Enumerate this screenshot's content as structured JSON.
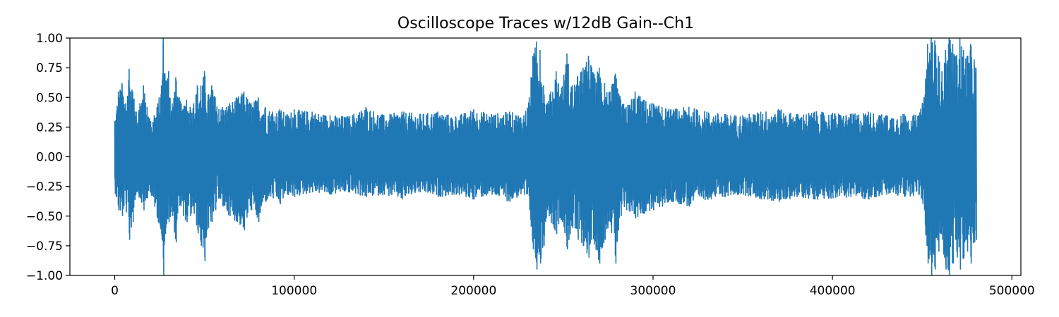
{
  "chart_data": {
    "type": "line",
    "title": "Oscilloscope Traces w/12dB Gain--Ch1",
    "xlabel": "",
    "ylabel": "",
    "xlim": [
      -25000,
      505000
    ],
    "ylim": [
      -1.0,
      1.0
    ],
    "x_ticks": [
      0,
      100000,
      200000,
      300000,
      400000,
      500000
    ],
    "x_tick_labels": [
      "0",
      "100000",
      "200000",
      "300000",
      "400000",
      "500000"
    ],
    "y_ticks": [
      -1.0,
      -0.75,
      -0.5,
      -0.25,
      0.0,
      0.25,
      0.5,
      0.75,
      1.0
    ],
    "y_tick_labels": [
      "−1.00",
      "−0.75",
      "−0.50",
      "−0.25",
      "0.00",
      "0.25",
      "0.50",
      "0.75",
      "1.00"
    ],
    "grid": false,
    "legend": "none",
    "series_color": "#1f77b4",
    "x_range": [
      0,
      480000
    ],
    "envelope": {
      "x": [
        0,
        2000,
        4000,
        6000,
        8000,
        10000,
        12000,
        14000,
        16000,
        18000,
        20000,
        22000,
        24000,
        26000,
        27000,
        28000,
        30000,
        32000,
        34000,
        36000,
        38000,
        40000,
        42000,
        44000,
        46000,
        48000,
        50000,
        52000,
        54000,
        56000,
        58000,
        60000,
        64000,
        68000,
        72000,
        76000,
        80000,
        84000,
        88000,
        92000,
        96000,
        100000,
        110000,
        120000,
        130000,
        140000,
        150000,
        160000,
        170000,
        180000,
        190000,
        200000,
        210000,
        220000,
        228000,
        231000,
        233000,
        235000,
        237000,
        239000,
        241000,
        243000,
        246000,
        249000,
        252000,
        255000,
        258000,
        261000,
        264000,
        267000,
        270000,
        273000,
        276000,
        279000,
        282000,
        285000,
        290000,
        295000,
        300000,
        305000,
        310000,
        320000,
        330000,
        340000,
        350000,
        360000,
        370000,
        380000,
        390000,
        400000,
        410000,
        420000,
        430000,
        440000,
        448000,
        451000,
        453000,
        455000,
        457000,
        459000,
        461000,
        463000,
        465000,
        467000,
        469000,
        471000,
        473000,
        475000,
        477000,
        479000,
        480000
      ],
      "max": [
        0.3,
        0.55,
        0.62,
        0.45,
        0.74,
        0.55,
        0.38,
        0.45,
        0.6,
        0.42,
        0.3,
        0.35,
        0.45,
        0.6,
        1.0,
        0.7,
        0.72,
        0.45,
        0.67,
        0.5,
        0.4,
        0.48,
        0.42,
        0.45,
        0.6,
        0.6,
        0.72,
        0.52,
        0.6,
        0.5,
        0.4,
        0.42,
        0.45,
        0.5,
        0.55,
        0.45,
        0.5,
        0.42,
        0.38,
        0.4,
        0.36,
        0.4,
        0.38,
        0.35,
        0.34,
        0.42,
        0.35,
        0.38,
        0.36,
        0.38,
        0.34,
        0.4,
        0.36,
        0.38,
        0.35,
        0.5,
        0.85,
        0.97,
        0.9,
        0.6,
        0.45,
        0.55,
        0.72,
        0.58,
        0.87,
        0.6,
        0.68,
        0.75,
        0.85,
        0.7,
        0.75,
        0.62,
        0.55,
        0.7,
        0.48,
        0.42,
        0.55,
        0.48,
        0.45,
        0.42,
        0.4,
        0.42,
        0.38,
        0.36,
        0.35,
        0.38,
        0.4,
        0.36,
        0.38,
        0.37,
        0.36,
        0.38,
        0.35,
        0.36,
        0.35,
        0.5,
        0.95,
        1.0,
        0.98,
        0.85,
        0.72,
        0.9,
        1.0,
        0.95,
        0.85,
        1.0,
        0.9,
        0.85,
        0.95,
        0.82,
        0.75
      ],
      "min": [
        -0.28,
        -0.45,
        -0.5,
        -0.4,
        -0.7,
        -0.55,
        -0.3,
        -0.35,
        -0.45,
        -0.35,
        -0.3,
        -0.42,
        -0.55,
        -0.62,
        -1.0,
        -0.65,
        -0.55,
        -0.5,
        -0.72,
        -0.4,
        -0.5,
        -0.55,
        -0.5,
        -0.48,
        -0.62,
        -0.75,
        -0.88,
        -0.6,
        -0.55,
        -0.45,
        -0.35,
        -0.42,
        -0.5,
        -0.55,
        -0.62,
        -0.45,
        -0.55,
        -0.38,
        -0.35,
        -0.4,
        -0.32,
        -0.34,
        -0.3,
        -0.32,
        -0.3,
        -0.34,
        -0.32,
        -0.36,
        -0.3,
        -0.34,
        -0.32,
        -0.36,
        -0.32,
        -0.38,
        -0.32,
        -0.45,
        -0.78,
        -0.95,
        -0.9,
        -0.75,
        -0.45,
        -0.55,
        -0.65,
        -0.52,
        -0.78,
        -0.6,
        -0.7,
        -0.75,
        -0.85,
        -0.72,
        -0.9,
        -0.7,
        -0.55,
        -0.9,
        -0.5,
        -0.45,
        -0.52,
        -0.48,
        -0.45,
        -0.42,
        -0.38,
        -0.42,
        -0.36,
        -0.34,
        -0.32,
        -0.36,
        -0.38,
        -0.34,
        -0.36,
        -0.35,
        -0.34,
        -0.36,
        -0.32,
        -0.34,
        -0.32,
        -0.45,
        -0.9,
        -1.0,
        -0.95,
        -0.8,
        -0.7,
        -0.95,
        -1.0,
        -0.9,
        -0.8,
        -0.95,
        -0.85,
        -0.8,
        -0.9,
        -0.72,
        -0.7
      ]
    }
  }
}
